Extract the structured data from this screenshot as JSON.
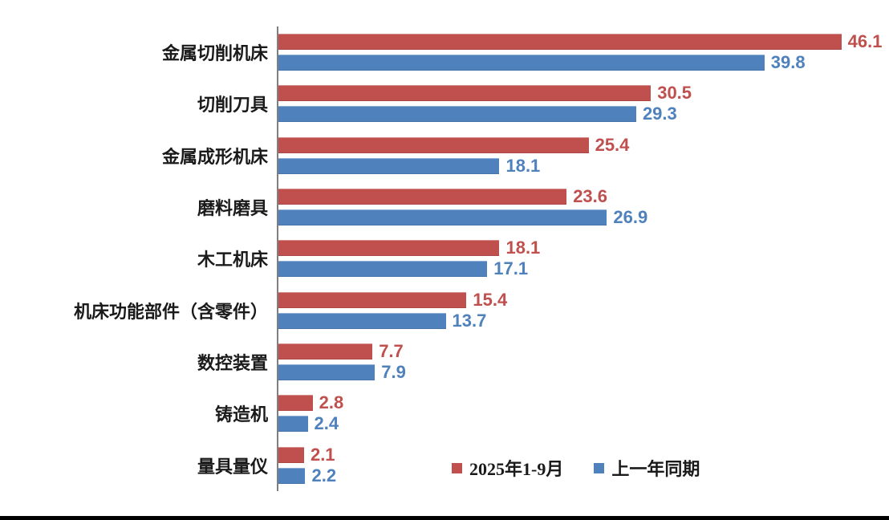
{
  "chart_data": {
    "type": "bar",
    "orientation": "horizontal",
    "title": "",
    "xlabel": "",
    "ylabel": "",
    "xlim": [
      0,
      50
    ],
    "grid": false,
    "value_labels": true,
    "legend_position": "bottom",
    "axis_color": "#7f7f7f",
    "categories": [
      "金属切削机床",
      "切削刀具",
      "金属成形机床",
      "磨料磨具",
      "木工机床",
      "机床功能部件（含零件）",
      "数控装置",
      "铸造机",
      "量具量仪"
    ],
    "series": [
      {
        "name": "2025年1-9月",
        "color": "#C0504D",
        "values": [
          46.1,
          30.5,
          25.4,
          23.6,
          18.1,
          15.4,
          7.7,
          2.8,
          2.1
        ]
      },
      {
        "name": "上一年同期",
        "color": "#4F81BD",
        "values": [
          39.8,
          29.3,
          18.1,
          26.9,
          17.1,
          13.7,
          7.9,
          2.4,
          2.2
        ]
      }
    ]
  }
}
